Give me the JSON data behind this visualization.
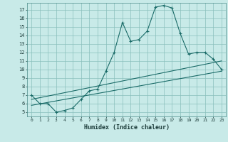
{
  "xlabel": "Humidex (Indice chaleur)",
  "bg_color": "#c8eae8",
  "grid_color": "#8abfbc",
  "line_color": "#1a6b68",
  "xlim": [
    -0.5,
    23.5
  ],
  "ylim": [
    4.5,
    17.8
  ],
  "xticks": [
    0,
    1,
    2,
    3,
    4,
    5,
    6,
    7,
    8,
    9,
    10,
    11,
    12,
    13,
    14,
    15,
    16,
    17,
    18,
    19,
    20,
    21,
    22,
    23
  ],
  "yticks": [
    5,
    6,
    7,
    8,
    9,
    10,
    11,
    12,
    13,
    14,
    15,
    16,
    17
  ],
  "curve1_x": [
    0,
    1,
    2,
    3,
    4,
    5,
    6,
    7,
    8,
    9,
    10,
    11,
    12,
    13,
    14,
    15,
    16,
    17,
    18,
    19,
    20,
    21,
    22,
    23
  ],
  "curve1_y": [
    7.0,
    6.0,
    6.0,
    5.0,
    5.2,
    5.5,
    6.5,
    7.5,
    7.7,
    9.8,
    12.0,
    15.5,
    13.3,
    13.5,
    14.5,
    17.3,
    17.5,
    17.2,
    14.2,
    11.8,
    12.0,
    12.0,
    11.2,
    10.0
  ],
  "line2_x": [
    0,
    23
  ],
  "line2_y": [
    5.8,
    9.8
  ],
  "line3_x": [
    0,
    23
  ],
  "line3_y": [
    6.5,
    11.0
  ]
}
